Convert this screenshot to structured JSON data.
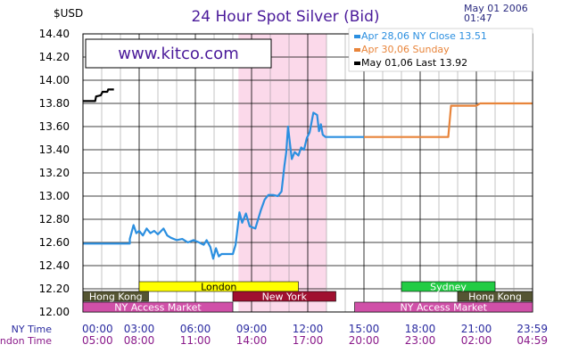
{
  "header": {
    "currency": "$USD",
    "date": "May  01  2006",
    "time": "01:47"
  },
  "watermark": "www.kitco.com",
  "chart_data": {
    "type": "line",
    "title": "24 Hour Spot Silver (Bid)",
    "ylabel": "$USD",
    "ylim": [
      12.0,
      14.4
    ],
    "y_ticks": [
      "14.40",
      "14.20",
      "14.00",
      "13.80",
      "13.60",
      "13.40",
      "13.20",
      "13.00",
      "12.80",
      "12.60",
      "12.40",
      "12.20",
      "12.00"
    ],
    "xlim": [
      0,
      24
    ],
    "x_rows": [
      {
        "label": "NY Time",
        "ticks": [
          "00:00",
          "03:00",
          "06:00",
          "09:00",
          "12:00",
          "15:00",
          "18:00",
          "21:00",
          "23:59"
        ],
        "color": "#2a2aa0"
      },
      {
        "label": "London Time",
        "ticks": [
          "05:00",
          "08:00",
          "11:00",
          "14:00",
          "17:00",
          "20:00",
          "23:00",
          "02:00",
          "04:59"
        ],
        "color": "#8a1a8a"
      }
    ],
    "grid": true,
    "legend_position": "top-right",
    "highlight_band": {
      "x_start": 8.3,
      "x_end": 13.0,
      "color": "#fbd9ea"
    },
    "series": [
      {
        "name": "Apr  28,06  NY  Close  13.51",
        "color": "#2b8fe0",
        "points": [
          [
            0.0,
            12.59
          ],
          [
            2.5,
            12.59
          ],
          [
            2.5,
            12.63
          ],
          [
            2.7,
            12.75
          ],
          [
            2.85,
            12.68
          ],
          [
            3.0,
            12.7
          ],
          [
            3.2,
            12.66
          ],
          [
            3.4,
            12.72
          ],
          [
            3.6,
            12.68
          ],
          [
            3.8,
            12.7
          ],
          [
            4.0,
            12.67
          ],
          [
            4.3,
            12.72
          ],
          [
            4.5,
            12.66
          ],
          [
            4.7,
            12.64
          ],
          [
            5.0,
            12.62
          ],
          [
            5.3,
            12.63
          ],
          [
            5.6,
            12.6
          ],
          [
            5.9,
            12.62
          ],
          [
            6.2,
            12.6
          ],
          [
            6.45,
            12.58
          ],
          [
            6.6,
            12.62
          ],
          [
            6.8,
            12.56
          ],
          [
            6.95,
            12.46
          ],
          [
            7.1,
            12.55
          ],
          [
            7.25,
            12.48
          ],
          [
            7.4,
            12.5
          ],
          [
            8.0,
            12.5
          ],
          [
            8.15,
            12.58
          ],
          [
            8.35,
            12.86
          ],
          [
            8.5,
            12.77
          ],
          [
            8.7,
            12.85
          ],
          [
            8.9,
            12.74
          ],
          [
            9.2,
            12.72
          ],
          [
            9.5,
            12.88
          ],
          [
            9.7,
            12.97
          ],
          [
            9.9,
            13.01
          ],
          [
            10.15,
            13.01
          ],
          [
            10.4,
            13.0
          ],
          [
            10.6,
            13.04
          ],
          [
            10.75,
            13.26
          ],
          [
            10.85,
            13.38
          ],
          [
            10.95,
            13.6
          ],
          [
            11.05,
            13.45
          ],
          [
            11.15,
            13.32
          ],
          [
            11.3,
            13.38
          ],
          [
            11.5,
            13.35
          ],
          [
            11.65,
            13.42
          ],
          [
            11.8,
            13.4
          ],
          [
            11.95,
            13.5
          ],
          [
            12.1,
            13.55
          ],
          [
            12.3,
            13.72
          ],
          [
            12.5,
            13.7
          ],
          [
            12.6,
            13.56
          ],
          [
            12.7,
            13.62
          ],
          [
            12.8,
            13.53
          ],
          [
            12.95,
            13.51
          ],
          [
            15.0,
            13.51
          ]
        ]
      },
      {
        "name": "Apr  30,06       Sunday",
        "color": "#e8843a",
        "points": [
          [
            15.0,
            13.51
          ],
          [
            19.5,
            13.51
          ],
          [
            19.65,
            13.78
          ],
          [
            21.0,
            13.78
          ],
          [
            21.2,
            13.8
          ],
          [
            24.0,
            13.8
          ]
        ]
      },
      {
        "name": "May  01,06  Last  13.92",
        "color": "#000000",
        "points": [
          [
            0.0,
            13.82
          ],
          [
            0.65,
            13.82
          ],
          [
            0.7,
            13.86
          ],
          [
            0.95,
            13.87
          ],
          [
            1.05,
            13.9
          ],
          [
            1.3,
            13.9
          ],
          [
            1.35,
            13.92
          ],
          [
            1.65,
            13.92
          ]
        ]
      }
    ],
    "sessions": [
      {
        "label": "London",
        "row": 1,
        "start": 3.0,
        "end": 11.5,
        "fill": "#ffff00",
        "text": "#000000"
      },
      {
        "label": "Sydney",
        "row": 1,
        "start": 17.0,
        "end": 22.0,
        "fill": "#22cc44",
        "text": "#ffffff"
      },
      {
        "label": "Hong  Kong",
        "row": 2,
        "start": 0.0,
        "end": 3.5,
        "fill": "#555533",
        "text": "#ffffff"
      },
      {
        "label": "New  York",
        "row": 2,
        "start": 8.0,
        "end": 13.5,
        "fill": "#a01030",
        "text": "#ffffff"
      },
      {
        "label": "Hong  Kong",
        "row": 2,
        "start": 20.0,
        "end": 24.0,
        "fill": "#555533",
        "text": "#ffffff"
      },
      {
        "label": "NY  Access  Market",
        "row": 3,
        "start": 0.0,
        "end": 8.0,
        "fill": "#d050a8",
        "text": "#ffffff"
      },
      {
        "label": "NY  Access  Market",
        "row": 3,
        "start": 14.5,
        "end": 24.0,
        "fill": "#d050a8",
        "text": "#ffffff"
      }
    ]
  }
}
